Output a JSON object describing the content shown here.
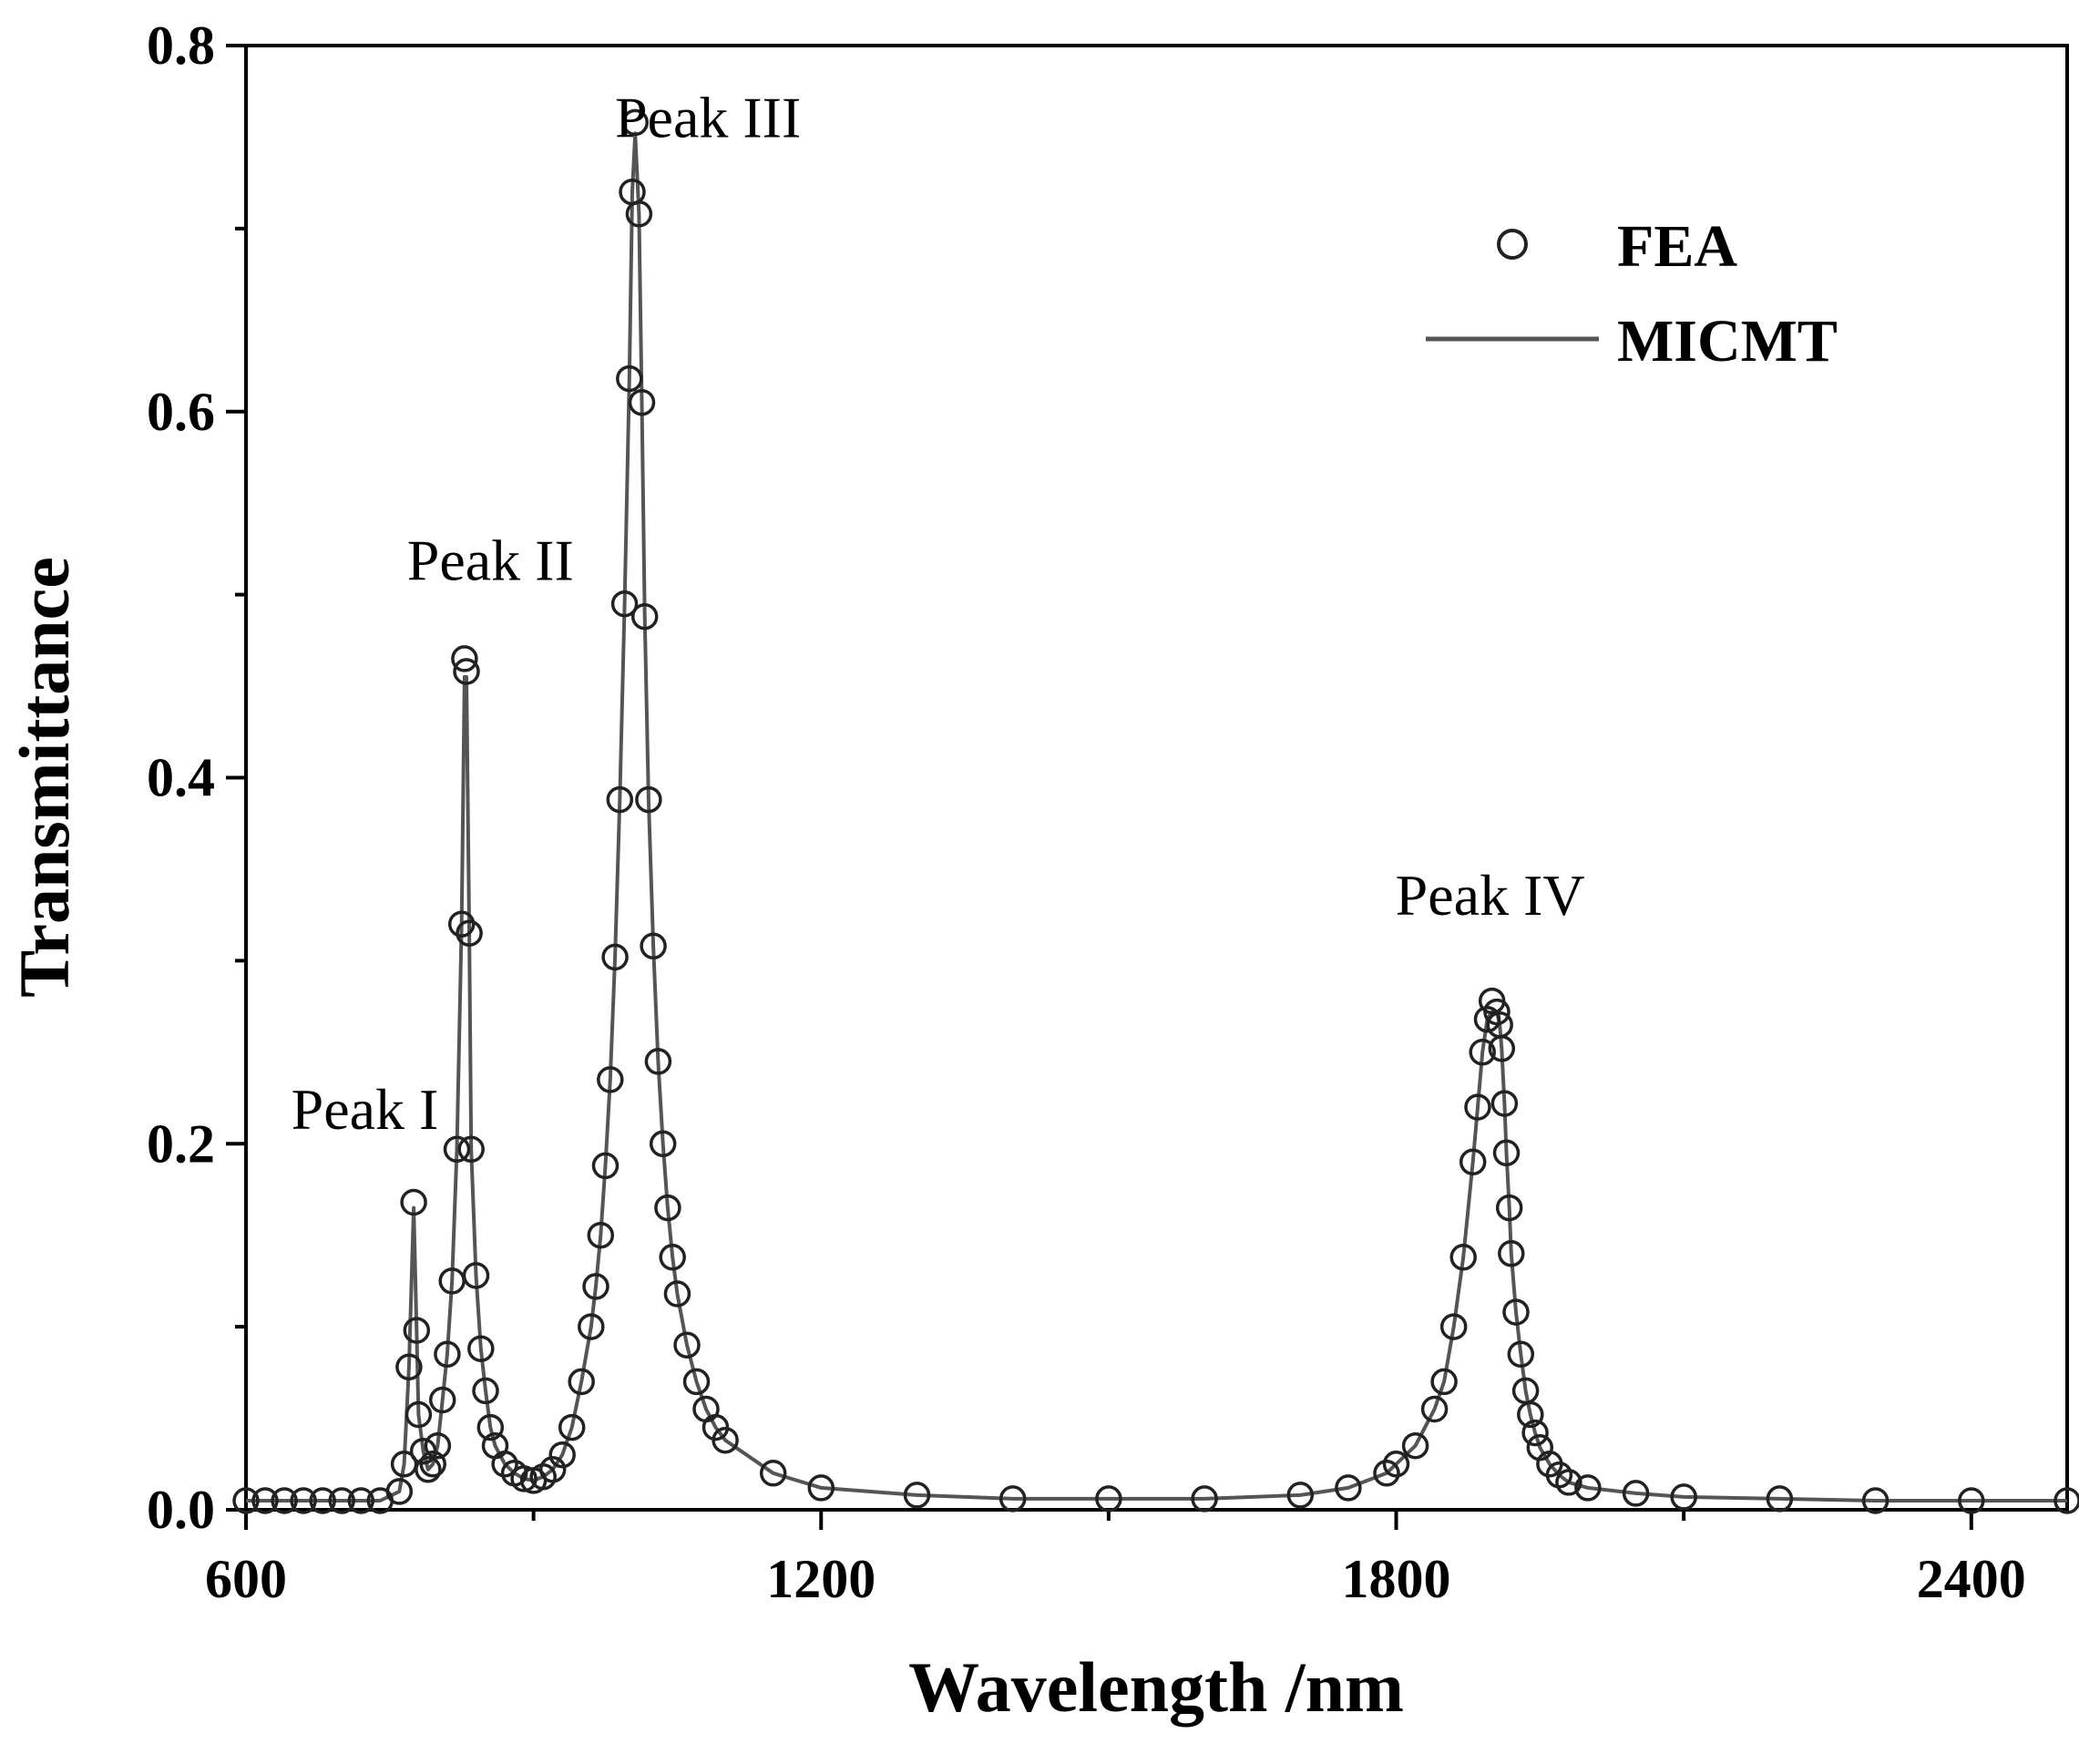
{
  "chart_data": {
    "type": "line",
    "title": "",
    "xlabel": "Wavelength /nm",
    "ylabel": "Transmittance",
    "xlim": [
      600,
      2500
    ],
    "ylim": [
      0,
      0.8
    ],
    "xticks": [
      600,
      1200,
      1800,
      2400
    ],
    "xtick_labels": [
      "600",
      "1200",
      "1800",
      "2400"
    ],
    "yticks": [
      0.0,
      0.2,
      0.4,
      0.6,
      0.8
    ],
    "ytick_labels": [
      "0.0",
      "0.2",
      "0.4",
      "0.6",
      "0.8"
    ],
    "grid": false,
    "legend_position": "top-right",
    "colors": {
      "line": "#555555",
      "marker": "#222222",
      "axis": "#000000"
    },
    "series": [
      {
        "name": "FEA",
        "style": "open-circle markers",
        "x": [
          600,
          620,
          640,
          660,
          680,
          700,
          720,
          740,
          760,
          765,
          770,
          775,
          778,
          780,
          785,
          790,
          795,
          800,
          805,
          810,
          815,
          820,
          825,
          828,
          830,
          833,
          835,
          840,
          845,
          850,
          855,
          860,
          870,
          880,
          890,
          900,
          910,
          920,
          930,
          940,
          950,
          960,
          965,
          970,
          975,
          980,
          985,
          990,
          995,
          1000,
          1003,
          1006,
          1010,
          1013,
          1016,
          1020,
          1025,
          1030,
          1035,
          1040,
          1045,
          1050,
          1060,
          1070,
          1080,
          1090,
          1100,
          1150,
          1200,
          1300,
          1400,
          1500,
          1600,
          1700,
          1750,
          1790,
          1800,
          1820,
          1840,
          1850,
          1860,
          1870,
          1880,
          1885,
          1890,
          1895,
          1900,
          1905,
          1908,
          1910,
          1913,
          1915,
          1918,
          1920,
          1925,
          1930,
          1935,
          1940,
          1945,
          1950,
          1960,
          1970,
          1980,
          2000,
          2050,
          2100,
          2200,
          2300,
          2400,
          2500
        ],
        "y": [
          0.005,
          0.005,
          0.005,
          0.005,
          0.005,
          0.005,
          0.005,
          0.005,
          0.01,
          0.025,
          0.078,
          0.168,
          0.098,
          0.052,
          0.032,
          0.022,
          0.025,
          0.035,
          0.06,
          0.085,
          0.125,
          0.197,
          0.32,
          0.465,
          0.458,
          0.315,
          0.197,
          0.128,
          0.088,
          0.065,
          0.045,
          0.035,
          0.025,
          0.02,
          0.017,
          0.016,
          0.018,
          0.022,
          0.03,
          0.045,
          0.07,
          0.1,
          0.122,
          0.15,
          0.188,
          0.235,
          0.302,
          0.388,
          0.495,
          0.618,
          0.72,
          0.758,
          0.708,
          0.605,
          0.488,
          0.388,
          0.308,
          0.245,
          0.2,
          0.165,
          0.138,
          0.118,
          0.09,
          0.07,
          0.055,
          0.045,
          0.038,
          0.02,
          0.012,
          0.008,
          0.006,
          0.006,
          0.006,
          0.008,
          0.012,
          0.02,
          0.025,
          0.035,
          0.055,
          0.07,
          0.1,
          0.138,
          0.19,
          0.22,
          0.25,
          0.268,
          0.278,
          0.272,
          0.265,
          0.252,
          0.222,
          0.195,
          0.165,
          0.14,
          0.108,
          0.085,
          0.065,
          0.052,
          0.042,
          0.034,
          0.025,
          0.019,
          0.015,
          0.012,
          0.009,
          0.007,
          0.006,
          0.005,
          0.005,
          0.005
        ]
      },
      {
        "name": "MICMT",
        "style": "solid line",
        "x": [
          600,
          620,
          640,
          660,
          680,
          700,
          720,
          740,
          760,
          765,
          770,
          775,
          778,
          780,
          785,
          790,
          795,
          800,
          805,
          810,
          815,
          820,
          825,
          828,
          830,
          833,
          835,
          840,
          845,
          850,
          855,
          860,
          870,
          880,
          890,
          900,
          910,
          920,
          930,
          940,
          950,
          960,
          965,
          970,
          975,
          980,
          985,
          990,
          995,
          1000,
          1003,
          1006,
          1010,
          1013,
          1016,
          1020,
          1025,
          1030,
          1035,
          1040,
          1045,
          1050,
          1060,
          1070,
          1080,
          1090,
          1100,
          1150,
          1200,
          1300,
          1400,
          1500,
          1600,
          1700,
          1750,
          1790,
          1800,
          1820,
          1840,
          1850,
          1860,
          1870,
          1880,
          1885,
          1890,
          1895,
          1900,
          1905,
          1908,
          1910,
          1913,
          1915,
          1918,
          1920,
          1925,
          1930,
          1935,
          1940,
          1945,
          1950,
          1960,
          1970,
          1980,
          2000,
          2050,
          2100,
          2200,
          2300,
          2400,
          2500
        ],
        "y": [
          0.005,
          0.005,
          0.005,
          0.005,
          0.005,
          0.005,
          0.005,
          0.005,
          0.01,
          0.025,
          0.078,
          0.165,
          0.098,
          0.052,
          0.032,
          0.022,
          0.025,
          0.035,
          0.06,
          0.085,
          0.125,
          0.197,
          0.32,
          0.455,
          0.455,
          0.315,
          0.197,
          0.128,
          0.088,
          0.065,
          0.045,
          0.035,
          0.025,
          0.02,
          0.017,
          0.016,
          0.018,
          0.022,
          0.03,
          0.045,
          0.07,
          0.1,
          0.122,
          0.15,
          0.188,
          0.235,
          0.302,
          0.388,
          0.495,
          0.618,
          0.72,
          0.752,
          0.708,
          0.605,
          0.488,
          0.388,
          0.308,
          0.245,
          0.2,
          0.165,
          0.138,
          0.118,
          0.09,
          0.07,
          0.055,
          0.045,
          0.038,
          0.02,
          0.012,
          0.008,
          0.006,
          0.006,
          0.006,
          0.008,
          0.012,
          0.02,
          0.025,
          0.035,
          0.055,
          0.07,
          0.1,
          0.138,
          0.19,
          0.22,
          0.25,
          0.268,
          0.272,
          0.272,
          0.265,
          0.252,
          0.222,
          0.195,
          0.165,
          0.14,
          0.108,
          0.085,
          0.065,
          0.052,
          0.042,
          0.034,
          0.025,
          0.019,
          0.015,
          0.012,
          0.009,
          0.007,
          0.006,
          0.005,
          0.005,
          0.005
        ]
      }
    ],
    "annotations": [
      {
        "text": "Peak I",
        "x": 724,
        "y": 0.208
      },
      {
        "text": "Peak II",
        "x": 855,
        "y": 0.508
      },
      {
        "text": "Peak III",
        "x": 1082,
        "y": 0.75
      },
      {
        "text": "Peak IV",
        "x": 1898,
        "y": 0.325
      }
    ]
  }
}
